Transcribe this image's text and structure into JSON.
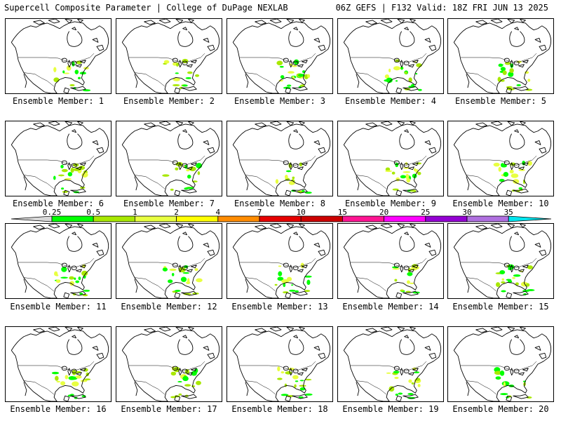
{
  "header": {
    "title_left": "Supercell Composite Parameter | College of DuPage NEXLAB",
    "title_right": "06Z GEFS | F132 Valid: 18Z FRI JUN 13 2025"
  },
  "legend": {
    "levels": [
      "0.25",
      "0.5",
      "1",
      "2",
      "4",
      "7",
      "10",
      "15",
      "20",
      "25",
      "30",
      "35"
    ],
    "colors": [
      "#d8d8d8",
      "#00ff00",
      "#a8e800",
      "#e8ff40",
      "#ffff00",
      "#ff8c00",
      "#e60000",
      "#cc0000",
      "#ff1493",
      "#ff00ff",
      "#9400d3",
      "#b070e0",
      "#00e5ee"
    ]
  },
  "members": [
    {
      "label": "Ensemble Member: 1"
    },
    {
      "label": "Ensemble Member: 2"
    },
    {
      "label": "Ensemble Member: 3"
    },
    {
      "label": "Ensemble Member: 4"
    },
    {
      "label": "Ensemble Member: 5"
    },
    {
      "label": "Ensemble Member: 6"
    },
    {
      "label": "Ensemble Member: 7"
    },
    {
      "label": "Ensemble Member: 8"
    },
    {
      "label": "Ensemble Member: 9"
    },
    {
      "label": "Ensemble Member: 10"
    },
    {
      "label": "Ensemble Member: 11"
    },
    {
      "label": "Ensemble Member: 12"
    },
    {
      "label": "Ensemble Member: 13"
    },
    {
      "label": "Ensemble Member: 14"
    },
    {
      "label": "Ensemble Member: 15"
    },
    {
      "label": "Ensemble Member: 16"
    },
    {
      "label": "Ensemble Member: 17"
    },
    {
      "label": "Ensemble Member: 18"
    },
    {
      "label": "Ensemble Member: 19"
    },
    {
      "label": "Ensemble Member: 20"
    }
  ]
}
